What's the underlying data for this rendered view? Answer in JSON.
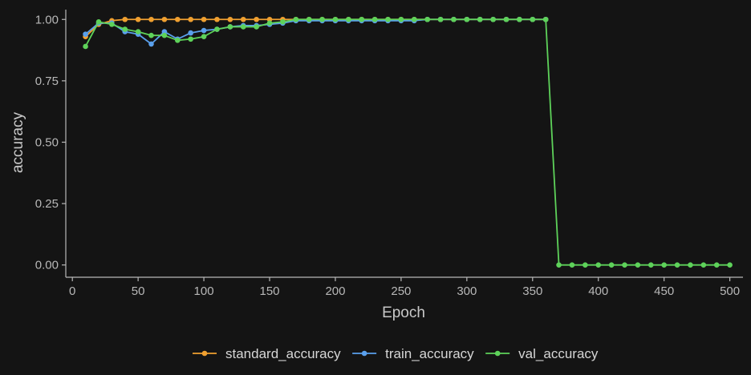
{
  "chart_data": {
    "type": "line",
    "xlabel": "Epoch",
    "ylabel": "accuracy",
    "xlim": [
      -5,
      510
    ],
    "ylim": [
      -0.05,
      1.04
    ],
    "xticks": [
      0,
      50,
      100,
      150,
      200,
      250,
      300,
      350,
      400,
      450,
      500
    ],
    "yticks": [
      0.0,
      0.25,
      0.5,
      0.75,
      1.0
    ],
    "xtick_labels": [
      "0",
      "50",
      "100",
      "150",
      "200",
      "250",
      "300",
      "350",
      "400",
      "450",
      "500"
    ],
    "ytick_labels": [
      "0.00",
      "0.25",
      "0.50",
      "0.75",
      "1.00"
    ],
    "grid": false,
    "legend_position": "bottom",
    "background": "#141414",
    "x": [
      10,
      20,
      30,
      40,
      50,
      60,
      70,
      80,
      90,
      100,
      110,
      120,
      130,
      140,
      150,
      160,
      170,
      180,
      190,
      200,
      210,
      220,
      230,
      240,
      250,
      260,
      270,
      280,
      290,
      300,
      310,
      320,
      330,
      340,
      350,
      360,
      370,
      380,
      390,
      400,
      410,
      420,
      430,
      440,
      450,
      460,
      470,
      480,
      490,
      500
    ],
    "series": [
      {
        "name": "standard_accuracy",
        "color": "#f0a030",
        "values": [
          0.93,
          0.98,
          0.995,
          1.0,
          1.0,
          1.0,
          1.0,
          1.0,
          1.0,
          1.0,
          1.0,
          1.0,
          1.0,
          1.0,
          1.0,
          1.0,
          1.0,
          1.0,
          1.0,
          1.0,
          1.0,
          1.0,
          1.0,
          1.0,
          1.0,
          1.0,
          1.0,
          1.0,
          1.0,
          1.0,
          1.0,
          1.0,
          1.0,
          1.0,
          1.0,
          1.0,
          null,
          null,
          null,
          null,
          null,
          null,
          null,
          null,
          null,
          null,
          null,
          null,
          null,
          null
        ]
      },
      {
        "name": "train_accuracy",
        "color": "#5aa0ec",
        "values": [
          0.94,
          0.985,
          0.985,
          0.95,
          0.94,
          0.9,
          0.95,
          0.92,
          0.945,
          0.955,
          0.96,
          0.97,
          0.975,
          0.975,
          0.98,
          0.985,
          0.995,
          0.995,
          0.995,
          0.995,
          0.995,
          0.995,
          0.995,
          0.995,
          0.995,
          0.995,
          1.0,
          1.0,
          1.0,
          1.0,
          1.0,
          1.0,
          1.0,
          1.0,
          1.0,
          1.0,
          null,
          null,
          null,
          null,
          null,
          null,
          null,
          null,
          null,
          null,
          null,
          null,
          null,
          null
        ]
      },
      {
        "name": "val_accuracy",
        "color": "#5ed25a",
        "values": [
          0.89,
          0.99,
          0.98,
          0.96,
          0.95,
          0.935,
          0.935,
          0.915,
          0.92,
          0.93,
          0.96,
          0.97,
          0.97,
          0.97,
          0.985,
          0.99,
          1.0,
          1.0,
          1.0,
          1.0,
          1.0,
          1.0,
          1.0,
          1.0,
          1.0,
          1.0,
          1.0,
          1.0,
          1.0,
          1.0,
          1.0,
          1.0,
          1.0,
          1.0,
          1.0,
          1.0,
          0.0,
          0.0,
          0.0,
          0.0,
          0.0,
          0.0,
          0.0,
          0.0,
          0.0,
          0.0,
          0.0,
          0.0,
          0.0,
          0.0
        ]
      }
    ]
  }
}
